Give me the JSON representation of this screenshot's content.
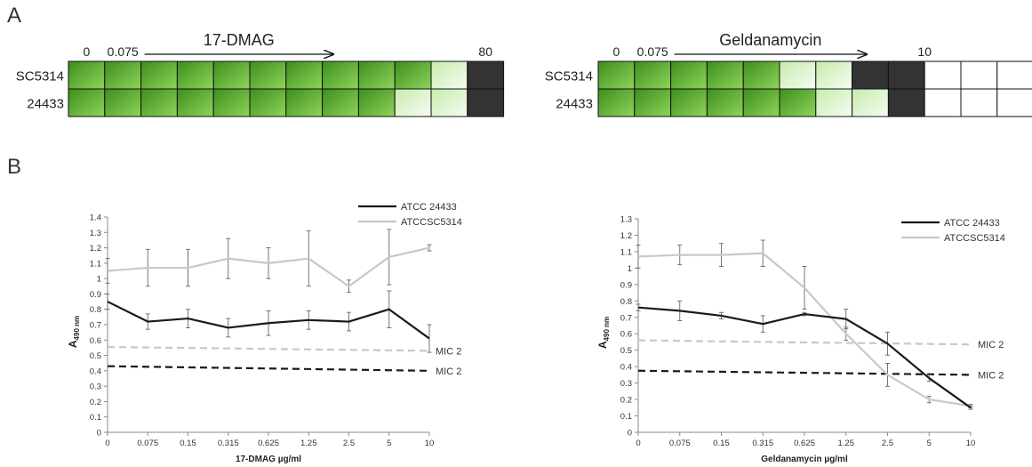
{
  "panel_labels": {
    "a": "A",
    "b": "B"
  },
  "colors": {
    "green_dark": "#3c8f1c",
    "green_light": "#8fd35a",
    "pale_green": "#eaf8e0",
    "grey_solid": "#333333",
    "white": "#ffffff",
    "line_black": "#1a1a1a",
    "line_grey": "#c8c8c8"
  },
  "grids": [
    {
      "drug": "17-DMAG",
      "conc_labels": {
        "start": "0",
        "second": "0.075",
        "end": "80"
      },
      "rows": [
        {
          "strain": "SC5314",
          "cells": [
            "green",
            "green",
            "green",
            "green",
            "green",
            "green",
            "green",
            "green",
            "green",
            "green",
            "pale",
            "grey"
          ]
        },
        {
          "strain": "24433",
          "cells": [
            "green",
            "green",
            "green",
            "green",
            "green",
            "green",
            "green",
            "green",
            "green",
            "pale",
            "pale",
            "grey"
          ]
        }
      ]
    },
    {
      "drug": "Geldanamycin",
      "conc_labels": {
        "start": "0",
        "second": "0.075",
        "end": "10"
      },
      "rows": [
        {
          "strain": "SC5314",
          "cells": [
            "green",
            "green",
            "green",
            "green",
            "green",
            "pale",
            "pale",
            "grey",
            "grey",
            "white",
            "white",
            "white"
          ]
        },
        {
          "strain": "24433",
          "cells": [
            "green",
            "green",
            "green",
            "green",
            "green",
            "green",
            "pale",
            "pale",
            "grey",
            "white",
            "white",
            "white"
          ]
        }
      ]
    }
  ],
  "chart_data": [
    {
      "type": "line",
      "title": "",
      "xlabel": "17-DMAG µg/ml",
      "ylabel": "A490 nm",
      "ylabel_main": "A",
      "ylabel_sub": "490 nm",
      "categories": [
        "0",
        "0.075",
        "0.15",
        "0.315",
        "0.625",
        "1.25",
        "2.5",
        "5",
        "10"
      ],
      "ylim": [
        0,
        1.4
      ],
      "yticks": [
        "0",
        "0.1",
        "0.2",
        "0.3",
        "0.4",
        "0.5",
        "0.6",
        "0.7",
        "0.8",
        "0.9",
        "1",
        "1.1",
        "1.2",
        "1.3",
        "1.4"
      ],
      "legend_position": "top-right",
      "series": [
        {
          "name": "ATCC 24433",
          "color": "#1a1a1a",
          "values": [
            0.85,
            0.72,
            0.74,
            0.68,
            0.71,
            0.73,
            0.72,
            0.8,
            0.61
          ],
          "errors": [
            0.05,
            0.05,
            0.06,
            0.06,
            0.08,
            0.06,
            0.06,
            0.12,
            0.09
          ]
        },
        {
          "name": "ATCCSC5314",
          "color": "#c8c8c8",
          "values": [
            1.05,
            1.07,
            1.07,
            1.13,
            1.1,
            1.13,
            0.95,
            1.14,
            1.2
          ],
          "errors": [
            0.08,
            0.12,
            0.12,
            0.13,
            0.1,
            0.18,
            0.04,
            0.18,
            0.02
          ]
        }
      ],
      "reference_lines": [
        {
          "label": "MIC 2",
          "color": "#c8c8c8",
          "values": [
            0.555,
            0.53
          ]
        },
        {
          "label": "MIC 2",
          "color": "#1a1a1a",
          "values": [
            0.43,
            0.4
          ]
        }
      ]
    },
    {
      "type": "line",
      "title": "",
      "xlabel": "Geldanamycin µg/ml",
      "ylabel": "A490 nm",
      "ylabel_main": "A",
      "ylabel_sub": "490 nm",
      "categories": [
        "0",
        "0.075",
        "0.15",
        "0.315",
        "0.625",
        "1.25",
        "2.5",
        "5",
        "10"
      ],
      "ylim": [
        0,
        1.3
      ],
      "yticks": [
        "0",
        "0.1",
        "0.2",
        "0.3",
        "0.4",
        "0.5",
        "0.6",
        "0.7",
        "0.8",
        "0.9",
        "1",
        "1.1",
        "1.2",
        "1.3"
      ],
      "legend_position": "top-right",
      "series": [
        {
          "name": "ATCC 24433",
          "color": "#1a1a1a",
          "values": [
            0.76,
            0.74,
            0.71,
            0.66,
            0.72,
            0.69,
            0.54,
            0.33,
            0.15
          ],
          "errors": [
            0.02,
            0.06,
            0.02,
            0.05,
            0.01,
            0.06,
            0.07,
            0.02,
            0.01
          ]
        },
        {
          "name": "ATCCSC5314",
          "color": "#c8c8c8",
          "values": [
            1.07,
            1.08,
            1.08,
            1.09,
            0.88,
            0.6,
            0.35,
            0.2,
            0.16
          ],
          "errors": [
            0.07,
            0.06,
            0.07,
            0.08,
            0.13,
            0.04,
            0.07,
            0.02,
            0.01
          ]
        }
      ],
      "reference_lines": [
        {
          "label": "MIC 2",
          "color": "#c8c8c8",
          "values": [
            0.56,
            0.535
          ]
        },
        {
          "label": "MIC 2",
          "color": "#1a1a1a",
          "values": [
            0.375,
            0.35
          ]
        }
      ]
    }
  ]
}
